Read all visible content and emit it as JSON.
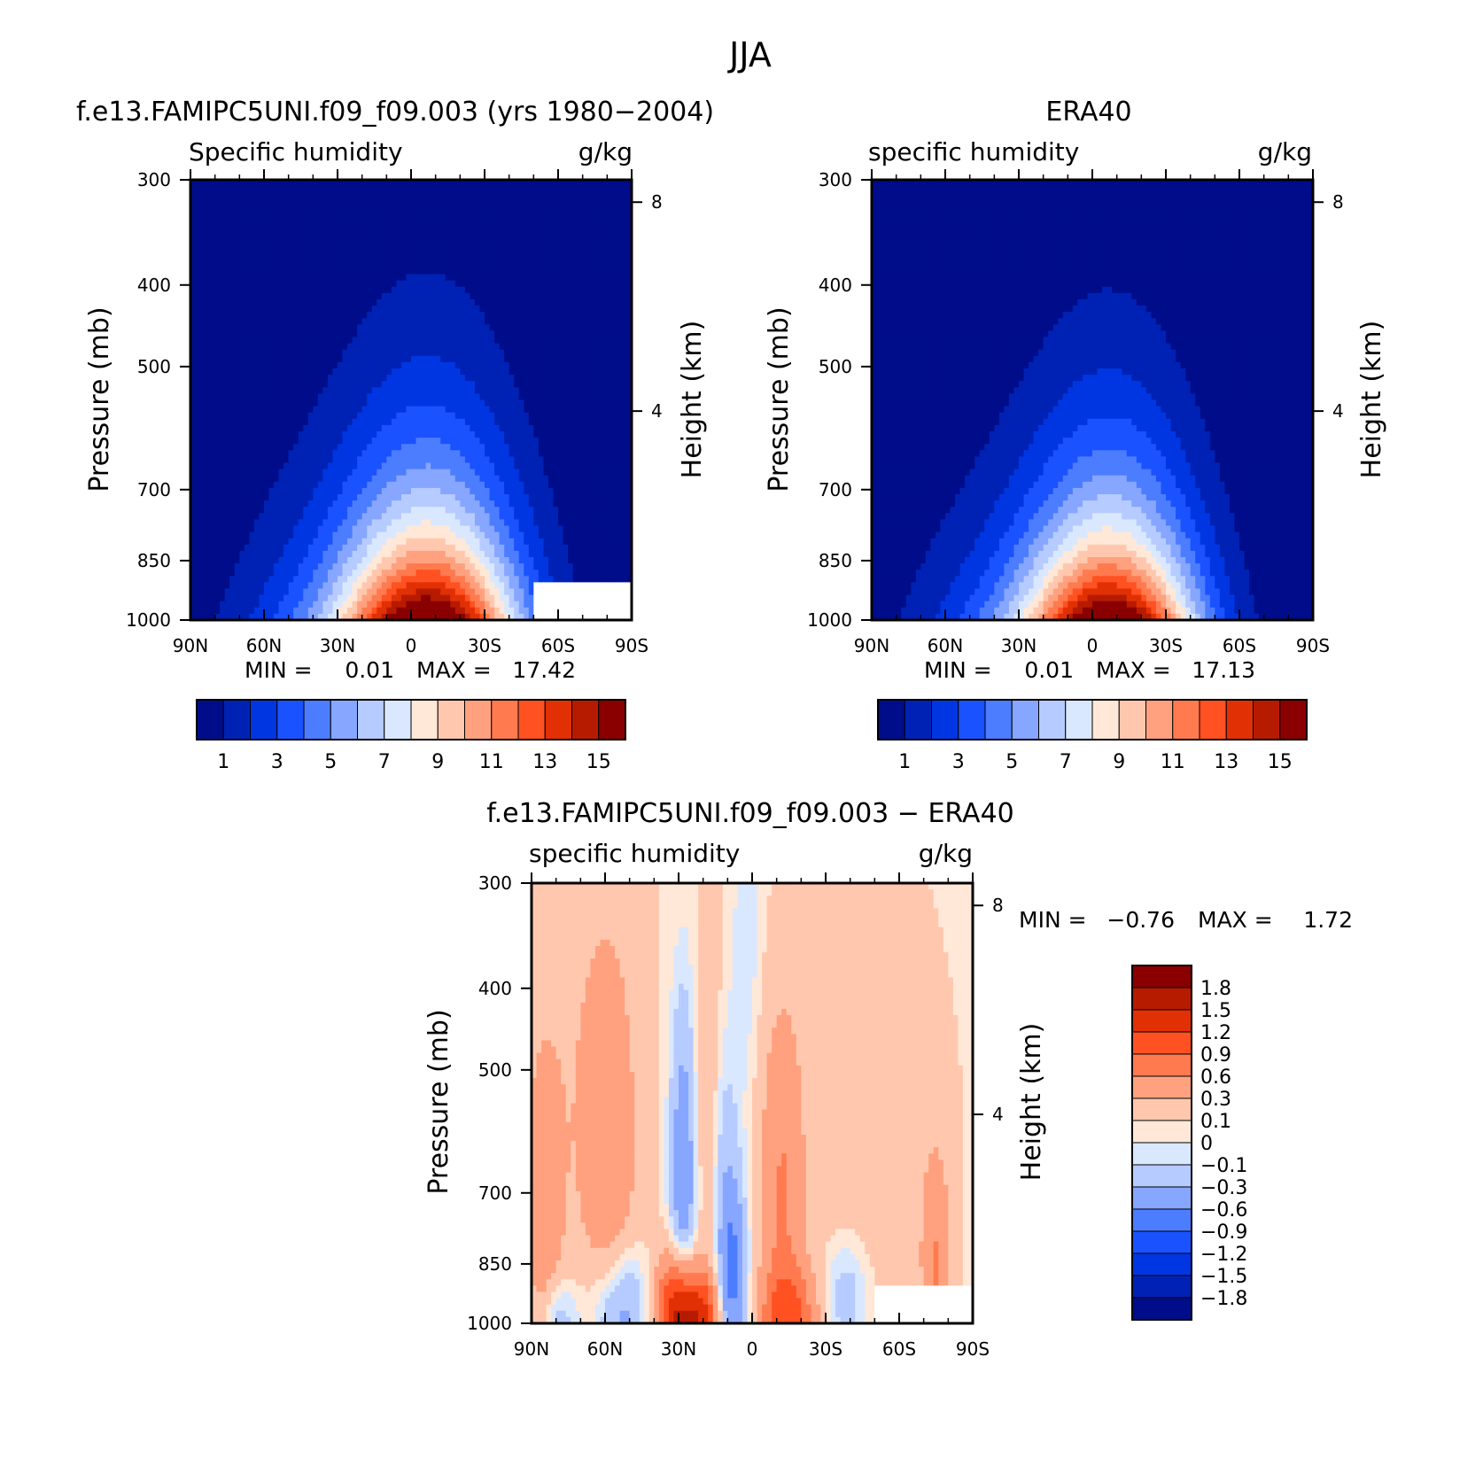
{
  "figure": {
    "title": "JJA"
  },
  "chart_data": [
    {
      "type": "heatmap",
      "title": "f.e13.FAMIPC5UNI.f09_f09.003 (yrs 1980−2004)",
      "left_label": "Specific humidity",
      "right_label": "g/kg",
      "ylabel": "Pressure (mb)",
      "ylabel_right": "Height (km)",
      "x_ticks": [
        "90N",
        "60N",
        "30N",
        "0",
        "30S",
        "60S",
        "90S"
      ],
      "xlim": [
        90,
        -90
      ],
      "y_ticks": [
        "300",
        "400",
        "500",
        "700",
        "850",
        "1000"
      ],
      "y_right_ticks": [
        "8",
        "4"
      ],
      "ylim": [
        1000,
        300
      ],
      "min_label": "MIN =",
      "min_value": "0.01",
      "max_label": "MAX =",
      "max_value": "17.42",
      "levels": [
        "1",
        "3",
        "5",
        "7",
        "9",
        "11",
        "13",
        "15"
      ],
      "colors": [
        "#000d8a",
        "#0022b4",
        "#0036e2",
        "#1a52ff",
        "#4c7dff",
        "#86a6ff",
        "#b6cbff",
        "#d9e8ff",
        "#ffe8d7",
        "#ffc8ae",
        "#ffa17e",
        "#ff7a4f",
        "#ff5121",
        "#e23005",
        "#b61b00",
        "#8a0000"
      ],
      "peak_value": 17.42,
      "peak_lat": -8,
      "peak_width": 26,
      "e_folding_height": 2.3,
      "masked_region": "south-polar lower troposphere"
    },
    {
      "type": "heatmap",
      "title": "ERA40",
      "left_label": "specific humidity",
      "right_label": "g/kg",
      "ylabel": "Pressure (mb)",
      "ylabel_right": "Height (km)",
      "x_ticks": [
        "90N",
        "60N",
        "30N",
        "0",
        "30S",
        "60S",
        "90S"
      ],
      "xlim": [
        90,
        -90
      ],
      "y_ticks": [
        "300",
        "400",
        "500",
        "700",
        "850",
        "1000"
      ],
      "y_right_ticks": [
        "8",
        "4"
      ],
      "ylim": [
        1000,
        300
      ],
      "min_label": "MIN =",
      "min_value": "0.01",
      "max_label": "MAX =",
      "max_value": "17.13",
      "levels": [
        "1",
        "3",
        "5",
        "7",
        "9",
        "11",
        "13",
        "15"
      ],
      "colors": [
        "#000d8a",
        "#0022b4",
        "#0036e2",
        "#1a52ff",
        "#4c7dff",
        "#86a6ff",
        "#b6cbff",
        "#d9e8ff",
        "#ffe8d7",
        "#ffc8ae",
        "#ffa17e",
        "#ff7a4f",
        "#ff5121",
        "#e23005",
        "#b61b00",
        "#8a0000"
      ],
      "peak_value": 17.13,
      "peak_lat": -8,
      "peak_width": 25,
      "e_folding_height": 2.2
    },
    {
      "type": "heatmap",
      "title": "f.e13.FAMIPC5UNI.f09_f09.003 − ERA40",
      "left_label": "specific humidity",
      "right_label": "g/kg",
      "ylabel": "Pressure (mb)",
      "ylabel_right": "Height (km)",
      "x_ticks": [
        "90N",
        "60N",
        "30N",
        "0",
        "30S",
        "60S",
        "90S"
      ],
      "xlim": [
        90,
        -90
      ],
      "y_ticks": [
        "300",
        "400",
        "500",
        "700",
        "850",
        "1000"
      ],
      "y_right_ticks": [
        "8",
        "4"
      ],
      "ylim": [
        1000,
        300
      ],
      "min_label": "MIN =",
      "min_value": "−0.76",
      "max_label": "MAX =",
      "max_value": "1.72",
      "levels": [
        "1.8",
        "1.5",
        "1.2",
        "0.9",
        "0.6",
        "0.3",
        "0.1",
        "0",
        "−0.1",
        "−0.3",
        "−0.6",
        "−0.9",
        "−1.2",
        "−1.5",
        "−1.8"
      ],
      "colors": [
        "#8a0000",
        "#b61b00",
        "#e23005",
        "#ff5121",
        "#ff7a4f",
        "#ffa17e",
        "#ffc8ae",
        "#ffe8d7",
        "#d9e8ff",
        "#b6cbff",
        "#86a6ff",
        "#4c7dff",
        "#1a52ff",
        "#0036e2",
        "#0022b4",
        "#000d8a"
      ],
      "anomalies": [
        {
          "lat": 30,
          "p": 985,
          "amp": 1.7,
          "wlat": 6,
          "wz": 0.8
        },
        {
          "lat": 20,
          "p": 990,
          "amp": 0.9,
          "wlat": 5,
          "wz": 0.6
        },
        {
          "lat": -15,
          "p": 990,
          "amp": 0.8,
          "wlat": 8,
          "wz": 0.7
        },
        {
          "lat": 55,
          "p": 980,
          "amp": -0.7,
          "wlat": 8,
          "wz": 1.0
        },
        {
          "lat": 80,
          "p": 990,
          "amp": -0.4,
          "wlat": 6,
          "wz": 0.6
        },
        {
          "lat": 28,
          "p": 680,
          "amp": -0.6,
          "wlat": 4,
          "wz": 2.5
        },
        {
          "lat": 8,
          "p": 880,
          "amp": -0.7,
          "wlat": 4,
          "wz": 1.2
        },
        {
          "lat": 12,
          "p": 650,
          "amp": -0.3,
          "wlat": 5,
          "wz": 2.0
        },
        {
          "lat": -38,
          "p": 930,
          "amp": -0.35,
          "wlat": 7,
          "wz": 0.8
        },
        {
          "lat": 2,
          "p": 350,
          "amp": -0.15,
          "wlat": 4,
          "wz": 2.0
        },
        {
          "lat": 58,
          "p": 720,
          "amp": 0.4,
          "wlat": 7,
          "wz": 3.0
        },
        {
          "lat": 85,
          "p": 760,
          "amp": 0.4,
          "wlat": 5,
          "wz": 2.0
        },
        {
          "lat": -12,
          "p": 700,
          "amp": 0.5,
          "wlat": 6,
          "wz": 2.5
        },
        {
          "lat": -75,
          "p": 850,
          "amp": 0.5,
          "wlat": 4,
          "wz": 1.5
        },
        {
          "lat": 18,
          "p": 560,
          "amp": 0.3,
          "wlat": 4,
          "wz": 3.0
        },
        {
          "lat": 70,
          "p": 500,
          "amp": 0.2,
          "wlat": 20,
          "wz": 4.0
        },
        {
          "lat": -45,
          "p": 600,
          "amp": 0.15,
          "wlat": 25,
          "wz": 4.0
        }
      ],
      "background_value": 0.06,
      "masked_region": "south-polar lower troposphere"
    }
  ]
}
